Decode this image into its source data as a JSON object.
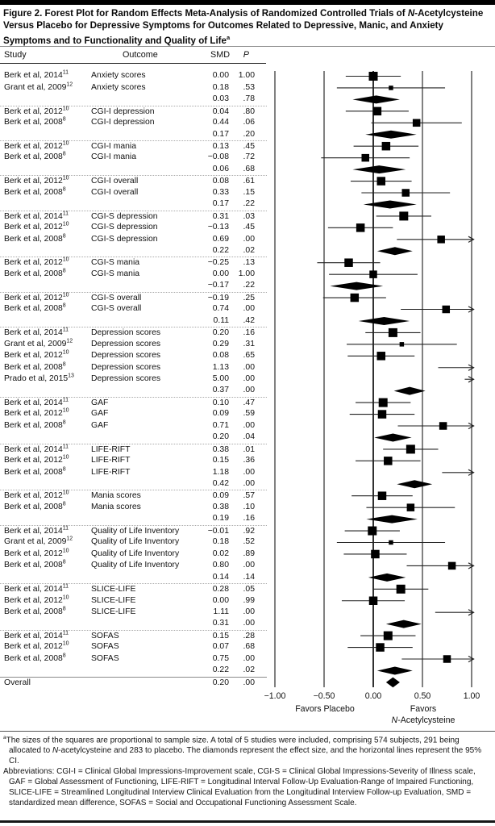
{
  "figure": {
    "title_prefix": "Figure 2. Forest Plot for Random Effects Meta-Analysis of Randomized Controlled Trials of ",
    "title_italic": "N",
    "title_main": "-Acetylcysteine Versus Placebo for Depressive Symptoms for Outcomes Related to Depressive, Manic, and Anxiety Symptoms and to Functionality and Quality of Life",
    "title_sup": "a"
  },
  "headers": {
    "study": "Study",
    "outcome": "Outcome",
    "smd": "SMD",
    "p": "P"
  },
  "axis": {
    "favors_left": "Favors Placebo",
    "favors_right_line1": "Favors",
    "favors_right_italic": "N",
    "favors_right_rest": "-Acetylcysteine"
  },
  "chart_data": {
    "type": "forest",
    "xlim": [
      -1,
      1
    ],
    "tick_values": [
      -1,
      -0.5,
      0,
      0.5,
      1
    ],
    "tick_labels": [
      "−1.00",
      "−0.50",
      "0.00",
      "0.50",
      "1.00"
    ],
    "legend_note": "squares = study SMD (size proportional to sample size); diamonds = pooled effect; lines = 95% CI; arrows = CI exceeds plot range",
    "rows": [
      {
        "study": "Berk et al, 2014",
        "ref": "11",
        "outcome": "Anxiety scores",
        "smd_text": "0.00",
        "p_text": "1.00",
        "smd": 0.0,
        "ci": [
          -0.28,
          0.28
        ],
        "kind": "study",
        "size": 11
      },
      {
        "study": "Grant et al, 2009",
        "ref": "12",
        "outcome": "Anxiety scores",
        "smd_text": "0.18",
        "p_text": ".53",
        "smd": 0.18,
        "ci": [
          -0.37,
          0.73
        ],
        "kind": "study",
        "size": 5.5
      },
      {
        "study": "",
        "ref": "",
        "outcome": "",
        "smd_text": "0.03",
        "p_text": ".78",
        "smd": 0.03,
        "ci": [
          -0.21,
          0.27
        ],
        "kind": "summary"
      },
      {
        "study": "Berk et al, 2012",
        "ref": "10",
        "outcome": "CGI-I depression",
        "smd_text": "0.04",
        "p_text": ".80",
        "smd": 0.04,
        "ci": [
          -0.28,
          0.36
        ],
        "kind": "study",
        "size": 10.5
      },
      {
        "study": "Berk et al, 2008",
        "ref": "8",
        "outcome": "CGI-I depression",
        "smd_text": "0.44",
        "p_text": ".06",
        "smd": 0.44,
        "ci": [
          -0.02,
          0.9
        ],
        "kind": "study",
        "size": 9.5
      },
      {
        "study": "",
        "ref": "",
        "outcome": "",
        "smd_text": "0.17",
        "p_text": ".20",
        "smd": 0.17,
        "ci": [
          -0.08,
          0.44
        ],
        "kind": "summary"
      },
      {
        "study": "Berk et al, 2012",
        "ref": "10",
        "outcome": "CGI-I mania",
        "smd_text": "0.13",
        "p_text": ".45",
        "smd": 0.13,
        "ci": [
          -0.2,
          0.46
        ],
        "kind": "study",
        "size": 10.5
      },
      {
        "study": "Berk et al, 2008",
        "ref": "8",
        "outcome": "CGI-I mania",
        "smd_text": "−0.08",
        "p_text": ".72",
        "smd": -0.08,
        "ci": [
          -0.53,
          0.37
        ],
        "kind": "study",
        "size": 9.5
      },
      {
        "study": "",
        "ref": "",
        "outcome": "",
        "smd_text": "0.06",
        "p_text": ".68",
        "smd": 0.06,
        "ci": [
          -0.21,
          0.33
        ],
        "kind": "summary"
      },
      {
        "study": "Berk et al, 2012",
        "ref": "10",
        "outcome": "CGI-I overall",
        "smd_text": "0.08",
        "p_text": ".61",
        "smd": 0.08,
        "ci": [
          -0.23,
          0.39
        ],
        "kind": "study",
        "size": 10.5
      },
      {
        "study": "Berk et al, 2008",
        "ref": "8",
        "outcome": "CGI-I overall",
        "smd_text": "0.33",
        "p_text": ".15",
        "smd": 0.33,
        "ci": [
          -0.12,
          0.78
        ],
        "kind": "study",
        "size": 9.5
      },
      {
        "study": "",
        "ref": "",
        "outcome": "",
        "smd_text": "0.17",
        "p_text": ".22",
        "smd": 0.17,
        "ci": [
          -0.1,
          0.44
        ],
        "kind": "summary"
      },
      {
        "study": "Berk et al, 2014",
        "ref": "11",
        "outcome": "CGI-S depression",
        "smd_text": "0.31",
        "p_text": ".03",
        "smd": 0.31,
        "ci": [
          0.03,
          0.59
        ],
        "kind": "study",
        "size": 11
      },
      {
        "study": "Berk et al, 2012",
        "ref": "10",
        "outcome": "CGI-S depression",
        "smd_text": "−0.13",
        "p_text": ".45",
        "smd": -0.13,
        "ci": [
          -0.46,
          0.2
        ],
        "kind": "study",
        "size": 10.5
      },
      {
        "study": "Berk et al, 2008",
        "ref": "8",
        "outcome": "CGI-S depression",
        "smd_text": "0.69",
        "p_text": ".00",
        "smd": 0.69,
        "ci": [
          0.24,
          1.14
        ],
        "kind": "study",
        "size": 9.5
      },
      {
        "study": "",
        "ref": "",
        "outcome": "",
        "smd_text": "0.22",
        "p_text": ".02",
        "smd": 0.22,
        "ci": [
          0.04,
          0.4
        ],
        "kind": "summary"
      },
      {
        "study": "Berk et al, 2012",
        "ref": "10",
        "outcome": "CGI-S mania",
        "smd_text": "−0.25",
        "p_text": ".13",
        "smd": -0.25,
        "ci": [
          -0.57,
          0.07
        ],
        "kind": "study",
        "size": 10.5
      },
      {
        "study": "Berk et al, 2008",
        "ref": "8",
        "outcome": "CGI-S mania",
        "smd_text": "0.00",
        "p_text": "1.00",
        "smd": 0.0,
        "ci": [
          -0.45,
          0.45
        ],
        "kind": "study",
        "size": 9.5
      },
      {
        "study": "",
        "ref": "",
        "outcome": "",
        "smd_text": "−0.17",
        "p_text": ".22",
        "smd": -0.17,
        "ci": [
          -0.44,
          0.1
        ],
        "kind": "summary"
      },
      {
        "study": "Berk et al, 2012",
        "ref": "10",
        "outcome": "CGI-S overall",
        "smd_text": "−0.19",
        "p_text": ".25",
        "smd": -0.19,
        "ci": [
          -0.51,
          0.13
        ],
        "kind": "study",
        "size": 10.5
      },
      {
        "study": "Berk et al, 2008",
        "ref": "8",
        "outcome": "CGI-S overall",
        "smd_text": "0.74",
        "p_text": ".00",
        "smd": 0.74,
        "ci": [
          0.28,
          1.2
        ],
        "kind": "study",
        "size": 9.5
      },
      {
        "study": "",
        "ref": "",
        "outcome": "",
        "smd_text": "0.11",
        "p_text": ".42",
        "smd": 0.11,
        "ci": [
          -0.15,
          0.37
        ],
        "kind": "summary"
      },
      {
        "study": "Berk et al, 2014",
        "ref": "11",
        "outcome": "Depression scores",
        "smd_text": "0.20",
        "p_text": ".16",
        "smd": 0.2,
        "ci": [
          -0.08,
          0.48
        ],
        "kind": "study",
        "size": 11
      },
      {
        "study": "Grant et al, 2009",
        "ref": "12",
        "outcome": "Depression scores",
        "smd_text": "0.29",
        "p_text": ".31",
        "smd": 0.29,
        "ci": [
          -0.27,
          0.85
        ],
        "kind": "study",
        "size": 5.5
      },
      {
        "study": "Berk et al, 2012",
        "ref": "10",
        "outcome": "Depression scores",
        "smd_text": "0.08",
        "p_text": ".65",
        "smd": 0.08,
        "ci": [
          -0.26,
          0.42
        ],
        "kind": "study",
        "size": 10.5
      },
      {
        "study": "Berk et al, 2008",
        "ref": "8",
        "outcome": "Depression scores",
        "smd_text": "1.13",
        "p_text": ".00",
        "smd": 1.13,
        "ci": [
          0.66,
          1.6
        ],
        "kind": "study",
        "size": 9.5
      },
      {
        "study": "Prado et al, 2015",
        "ref": "13",
        "outcome": "Depression scores",
        "smd_text": "5.00",
        "p_text": ".00",
        "smd": 5.0,
        "ci": [
          0.93,
          9.07
        ],
        "kind": "study",
        "size": 6
      },
      {
        "study": "",
        "ref": "",
        "outcome": "",
        "smd_text": "0.37",
        "p_text": ".00",
        "smd": 0.37,
        "ci": [
          0.21,
          0.53
        ],
        "kind": "summary"
      },
      {
        "study": "Berk et al, 2014",
        "ref": "11",
        "outcome": "GAF",
        "smd_text": "0.10",
        "p_text": ".47",
        "smd": 0.1,
        "ci": [
          -0.18,
          0.38
        ],
        "kind": "study",
        "size": 11
      },
      {
        "study": "Berk et al, 2012",
        "ref": "10",
        "outcome": "GAF",
        "smd_text": "0.09",
        "p_text": ".59",
        "smd": 0.09,
        "ci": [
          -0.24,
          0.42
        ],
        "kind": "study",
        "size": 10.5
      },
      {
        "study": "Berk et al, 2008",
        "ref": "8",
        "outcome": "GAF",
        "smd_text": "0.71",
        "p_text": ".00",
        "smd": 0.71,
        "ci": [
          0.25,
          1.17
        ],
        "kind": "study",
        "size": 9.5
      },
      {
        "study": "",
        "ref": "",
        "outcome": "",
        "smd_text": "0.20",
        "p_text": ".04",
        "smd": 0.2,
        "ci": [
          0.01,
          0.39
        ],
        "kind": "summary"
      },
      {
        "study": "Berk et al, 2014",
        "ref": "11",
        "outcome": "LIFE-RIFT",
        "smd_text": "0.38",
        "p_text": ".01",
        "smd": 0.38,
        "ci": [
          0.1,
          0.66
        ],
        "kind": "study",
        "size": 11
      },
      {
        "study": "Berk et al, 2012",
        "ref": "10",
        "outcome": "LIFE-RIFT",
        "smd_text": "0.15",
        "p_text": ".36",
        "smd": 0.15,
        "ci": [
          -0.18,
          0.48
        ],
        "kind": "study",
        "size": 10.5
      },
      {
        "study": "Berk et al, 2008",
        "ref": "8",
        "outcome": "LIFE-RIFT",
        "smd_text": "1.18",
        "p_text": ".00",
        "smd": 1.18,
        "ci": [
          0.7,
          1.66
        ],
        "kind": "study",
        "size": 9.5
      },
      {
        "study": "",
        "ref": "",
        "outcome": "",
        "smd_text": "0.42",
        "p_text": ".00",
        "smd": 0.42,
        "ci": [
          0.24,
          0.6
        ],
        "kind": "summary"
      },
      {
        "study": "Berk et al, 2012",
        "ref": "10",
        "outcome": "Mania scores",
        "smd_text": "0.09",
        "p_text": ".57",
        "smd": 0.09,
        "ci": [
          -0.22,
          0.4
        ],
        "kind": "study",
        "size": 10.5
      },
      {
        "study": "Berk et al, 2008",
        "ref": "8",
        "outcome": "Mania scores",
        "smd_text": "0.38",
        "p_text": ".10",
        "smd": 0.38,
        "ci": [
          -0.07,
          0.83
        ],
        "kind": "study",
        "size": 9.5
      },
      {
        "study": "",
        "ref": "",
        "outcome": "",
        "smd_text": "0.19",
        "p_text": ".16",
        "smd": 0.19,
        "ci": [
          -0.07,
          0.45
        ],
        "kind": "summary"
      },
      {
        "study": "Berk et al, 2014",
        "ref": "11",
        "outcome": "Quality of Life Inventory",
        "smd_text": "−0.01",
        "p_text": ".92",
        "smd": -0.01,
        "ci": [
          -0.29,
          0.27
        ],
        "kind": "study",
        "size": 11
      },
      {
        "study": "Grant et al, 2009",
        "ref": "12",
        "outcome": "Quality of Life Inventory",
        "smd_text": "0.18",
        "p_text": ".52",
        "smd": 0.18,
        "ci": [
          -0.37,
          0.73
        ],
        "kind": "study",
        "size": 5.5
      },
      {
        "study": "Berk et al, 2012",
        "ref": "10",
        "outcome": "Quality of Life Inventory",
        "smd_text": "0.02",
        "p_text": ".89",
        "smd": 0.02,
        "ci": [
          -0.3,
          0.34
        ],
        "kind": "study",
        "size": 10.5
      },
      {
        "study": "Berk et al, 2008",
        "ref": "8",
        "outcome": "Quality of Life Inventory",
        "smd_text": "0.80",
        "p_text": ".00",
        "smd": 0.8,
        "ci": [
          0.34,
          1.26
        ],
        "kind": "study",
        "size": 9.5
      },
      {
        "study": "",
        "ref": "",
        "outcome": "",
        "smd_text": "0.14",
        "p_text": ".14",
        "smd": 0.14,
        "ci": [
          -0.05,
          0.33
        ],
        "kind": "summary"
      },
      {
        "study": "Berk et al, 2014",
        "ref": "11",
        "outcome": "SLICE-LIFE",
        "smd_text": "0.28",
        "p_text": ".05",
        "smd": 0.28,
        "ci": [
          0.0,
          0.56
        ],
        "kind": "study",
        "size": 11
      },
      {
        "study": "Berk et al, 2012",
        "ref": "10",
        "outcome": "SLICE-LIFE",
        "smd_text": "0.00",
        "p_text": ".99",
        "smd": 0.0,
        "ci": [
          -0.32,
          0.32
        ],
        "kind": "study",
        "size": 10.5
      },
      {
        "study": "Berk et al, 2008",
        "ref": "8",
        "outcome": "SLICE-LIFE",
        "smd_text": "1.11",
        "p_text": ".00",
        "smd": 1.11,
        "ci": [
          0.63,
          1.59
        ],
        "kind": "study",
        "size": 9.5
      },
      {
        "study": "",
        "ref": "",
        "outcome": "",
        "smd_text": "0.31",
        "p_text": ".00",
        "smd": 0.31,
        "ci": [
          0.13,
          0.49
        ],
        "kind": "summary"
      },
      {
        "study": "Berk et al, 2014",
        "ref": "11",
        "outcome": "SOFAS",
        "smd_text": "0.15",
        "p_text": ".28",
        "smd": 0.15,
        "ci": [
          -0.13,
          0.43
        ],
        "kind": "study",
        "size": 11
      },
      {
        "study": "Berk et al, 2012",
        "ref": "10",
        "outcome": "SOFAS",
        "smd_text": "0.07",
        "p_text": ".68",
        "smd": 0.07,
        "ci": [
          -0.26,
          0.4
        ],
        "kind": "study",
        "size": 10.5
      },
      {
        "study": "Berk et al, 2008",
        "ref": "8",
        "outcome": "SOFAS",
        "smd_text": "0.75",
        "p_text": ".00",
        "smd": 0.75,
        "ci": [
          0.29,
          1.21
        ],
        "kind": "study",
        "size": 9.5
      },
      {
        "study": "",
        "ref": "",
        "outcome": "",
        "smd_text": "0.22",
        "p_text": ".02",
        "smd": 0.22,
        "ci": [
          0.04,
          0.4
        ],
        "kind": "summary"
      },
      {
        "study": "Overall",
        "ref": "",
        "outcome": "",
        "smd_text": "0.20",
        "p_text": ".00",
        "smd": 0.2,
        "ci": [
          0.13,
          0.27
        ],
        "kind": "overall"
      }
    ]
  },
  "footnote": {
    "sup": "a",
    "p1a": "The sizes of the squares are proportional to sample size. A total of 5 studies were included, comprising 574 subjects, 291 being allocated to ",
    "p1_italic": "N",
    "p1b": "-acetylcysteine and 283 to placebo. The diamonds represent the effect size, and the horizontal lines represent the 95% CI.",
    "abbreviations": "Abbreviations: CGI-I = Clinical Global Impressions-Improvement scale, CGI-S = Clinical Global Impressions-Severity of Illness scale, GAF = Global Assessment of Functioning, LIFE-RIFT = Longitudinal Interval Follow-Up Evaluation-Range of Impaired Functioning, SLICE-LIFE = Streamlined Longitudinal Interview Clinical Evaluation from the Longitudinal Interview Follow-up Evaluation, SMD = standardized mean difference, SOFAS = Social and Occupational Functioning Assessment Scale."
  }
}
